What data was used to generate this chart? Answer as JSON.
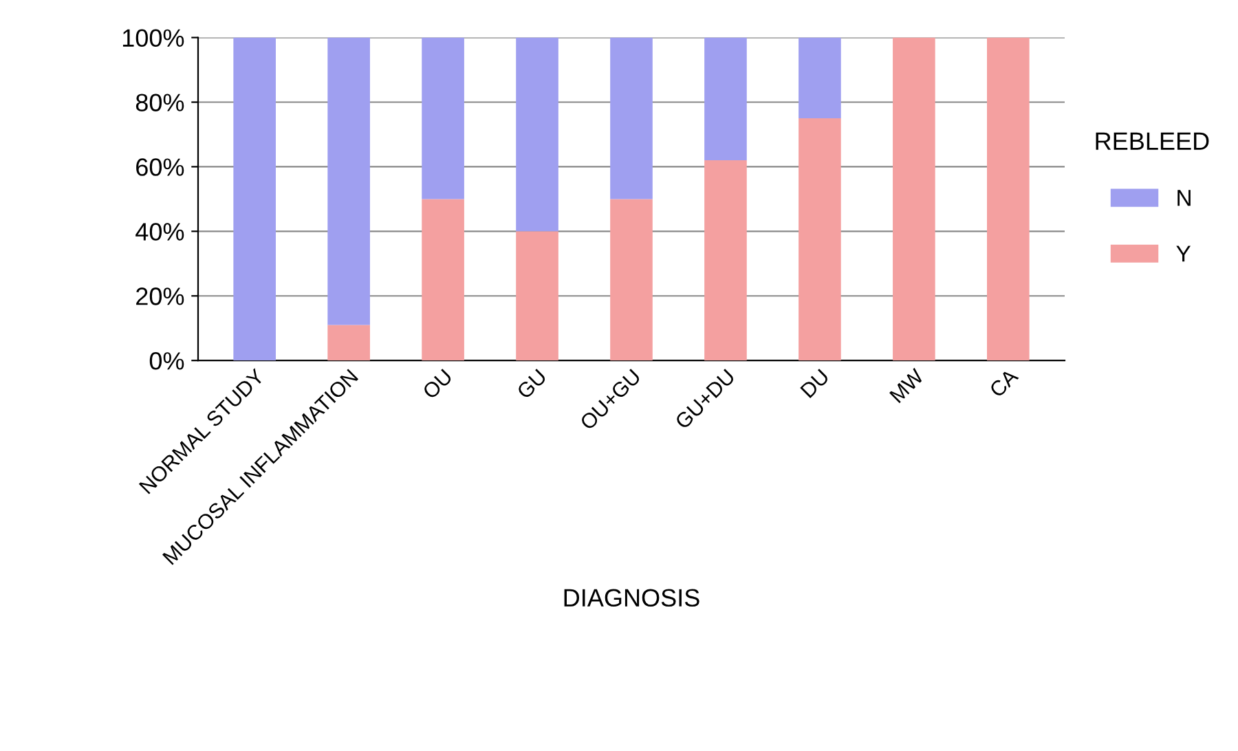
{
  "chart_data": {
    "type": "bar",
    "stacked": true,
    "xlabel": "DIAGNOSIS",
    "legend_title": "REBLEED",
    "categories": [
      "NORMAL STUDY",
      "MUCOSAL INFLAMMATION",
      "OU",
      "GU",
      "OU+GU",
      "GU+DU",
      "DU",
      "MW",
      "CA"
    ],
    "series": [
      {
        "name": "Y",
        "color": "#f4a0a0",
        "values": [
          0,
          11,
          50,
          40,
          50,
          62,
          75,
          100,
          100
        ]
      },
      {
        "name": "N",
        "color": "#9f9ff0",
        "values": [
          100,
          89,
          50,
          60,
          50,
          38,
          25,
          0,
          0
        ]
      }
    ],
    "ylim": [
      0,
      100
    ],
    "yticks": [
      {
        "value": 0,
        "label": "0%"
      },
      {
        "value": 20,
        "label": "20%"
      },
      {
        "value": 40,
        "label": "40%"
      },
      {
        "value": 60,
        "label": "60%"
      },
      {
        "value": 80,
        "label": "80%"
      },
      {
        "value": 100,
        "label": "100%"
      }
    ],
    "grid": "y",
    "legend": "right"
  }
}
